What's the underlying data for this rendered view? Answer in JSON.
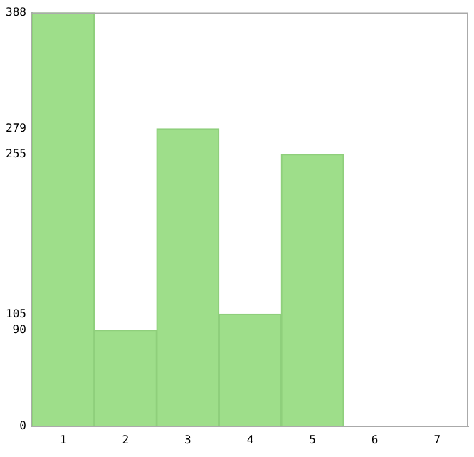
{
  "chart_data": {
    "type": "bar",
    "categories": [
      "1",
      "2",
      "3",
      "4",
      "5",
      "6",
      "7"
    ],
    "values": [
      388,
      90,
      279,
      105,
      255,
      0,
      0
    ],
    "color": "#9ede8a",
    "ylim": [
      0,
      388
    ],
    "yticks": [
      0,
      90,
      105,
      255,
      279,
      388
    ],
    "grid": false,
    "legend": false
  }
}
